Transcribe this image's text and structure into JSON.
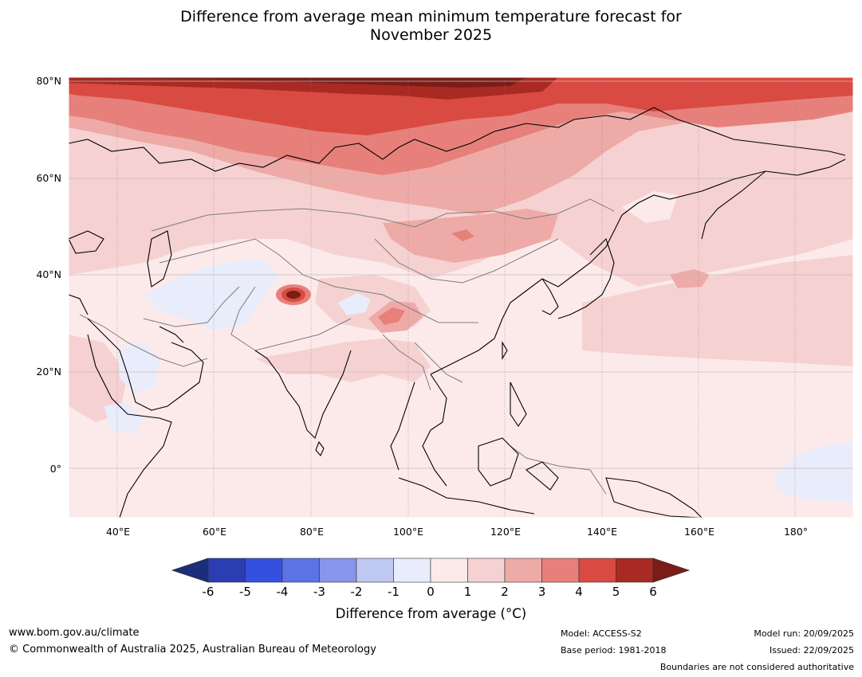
{
  "title_line1": "Difference from average mean minimum temperature forecast for",
  "title_line2": "November 2025",
  "map": {
    "lat_labels": [
      "80°N",
      "60°N",
      "40°N",
      "20°N",
      "0°"
    ],
    "lon_labels": [
      "40°E",
      "60°E",
      "80°E",
      "100°E",
      "120°E",
      "140°E",
      "160°E",
      "180°"
    ]
  },
  "colorbar": {
    "title": "Difference from average (°C)",
    "ticks": [
      "-6",
      "-5",
      "-4",
      "-3",
      "-2",
      "-1",
      "0",
      "1",
      "2",
      "3",
      "4",
      "5",
      "6"
    ],
    "colors": [
      "#1c2d7a",
      "#2a3db2",
      "#3350e0",
      "#5c73e6",
      "#8796ea",
      "#bfc8f3",
      "#e9ecfb",
      "#fceaea",
      "#f5d2d1",
      "#eeaaa7",
      "#e7807b",
      "#d94b42",
      "#a82a23",
      "#7a1d17"
    ]
  },
  "footer": {
    "website": "www.bom.gov.au/climate",
    "copyright": "© Commonwealth of Australia 2025, Australian Bureau of Meteorology",
    "model": "Model: ACCESS-S2",
    "base_period": "Base period: 1981-2018",
    "model_run": "Model run: 20/09/2025",
    "issued": "Issued: 22/09/2025",
    "disclaimer": "Boundaries are not considered authoritative"
  }
}
